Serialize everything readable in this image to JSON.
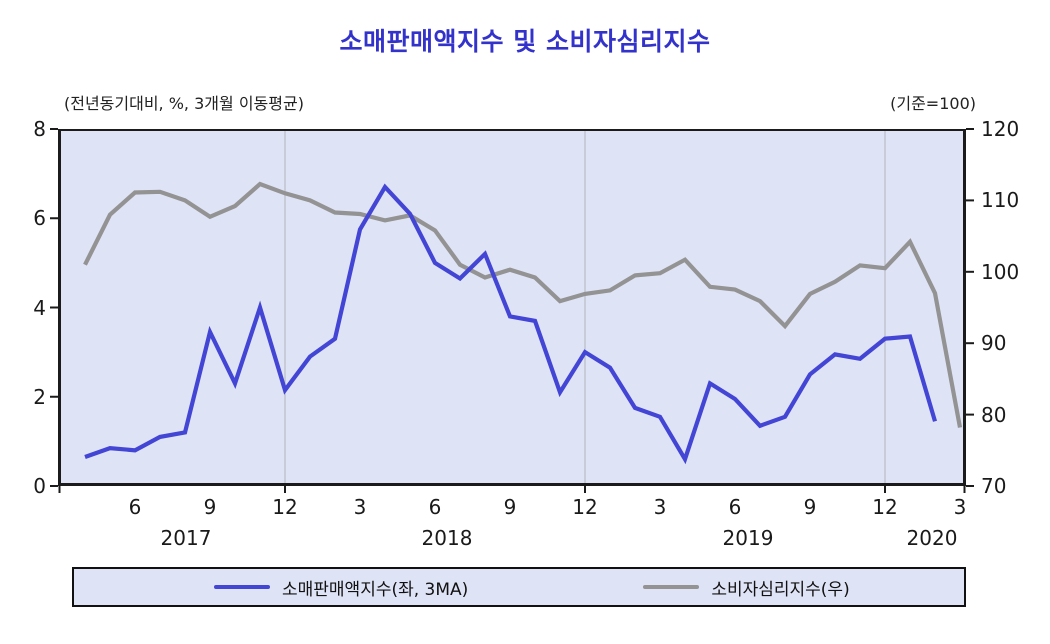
{
  "title": "소매판매액지수 및 소비자심리지수",
  "unit_labels": {
    "left": "(전년동기대비, %, 3개월 이동평균)",
    "right": "(기준=100)"
  },
  "colors": {
    "title": "#3333cc",
    "retail_line": "#4345d4",
    "sentiment_line": "#939393",
    "plot_background": "#dfe3f6",
    "gridline": "#c0c3ce",
    "axis": "#1b1b1b"
  },
  "chart_data": {
    "type": "line",
    "title": "소매판매액지수 및 소비자심리지수",
    "x_start_month": "2017-04",
    "x_frequency": "monthly",
    "x_tick_labels": [
      "6",
      "9",
      "12",
      "3",
      "6",
      "9",
      "12",
      "3",
      "6",
      "9",
      "12",
      "3"
    ],
    "x_tick_indices": [
      2,
      5,
      8,
      11,
      14,
      17,
      20,
      23,
      26,
      29,
      32,
      35
    ],
    "year_labels": [
      "2017",
      "2018",
      "2019",
      "2020"
    ],
    "gridline_indices": [
      8,
      20,
      32
    ],
    "left_axis": {
      "label": "(전년동기대비, %, 3개월 이동평균)",
      "min": 0,
      "max": 8,
      "ticks": [
        0,
        2,
        4,
        6,
        8
      ]
    },
    "right_axis": {
      "label": "(기준=100)",
      "min": 70,
      "max": 120,
      "ticks": [
        70,
        80,
        90,
        100,
        110,
        120
      ]
    },
    "legend_position": "bottom",
    "series": [
      {
        "name": "소매판매액지수(좌, 3MA)",
        "axis": "left",
        "color": "#4345d4",
        "values": [
          0.65,
          0.85,
          0.8,
          1.1,
          1.2,
          3.45,
          2.3,
          4.0,
          2.15,
          2.9,
          3.3,
          5.75,
          6.7,
          6.1,
          5.0,
          4.65,
          5.2,
          3.8,
          3.7,
          2.1,
          3.0,
          2.65,
          1.75,
          1.55,
          0.6,
          2.3,
          1.95,
          1.35,
          1.55,
          2.5,
          2.95,
          2.85,
          3.3,
          3.35,
          1.45
        ]
      },
      {
        "name": "소비자심리지수(우)",
        "axis": "right",
        "color": "#939393",
        "values": [
          101.0,
          108.0,
          111.1,
          111.2,
          110.0,
          107.7,
          109.2,
          112.3,
          111.0,
          110.0,
          108.3,
          108.1,
          107.2,
          107.9,
          105.8,
          101.0,
          99.2,
          100.3,
          99.2,
          95.9,
          96.9,
          97.4,
          99.5,
          99.8,
          101.7,
          97.9,
          97.5,
          95.9,
          92.4,
          96.9,
          98.6,
          100.9,
          100.5,
          104.2,
          97.0,
          78.2
        ]
      }
    ]
  },
  "legend": {
    "items": [
      {
        "label": "소매판매액지수(좌, 3MA)"
      },
      {
        "label": "소비자심리지수(우)"
      }
    ]
  }
}
